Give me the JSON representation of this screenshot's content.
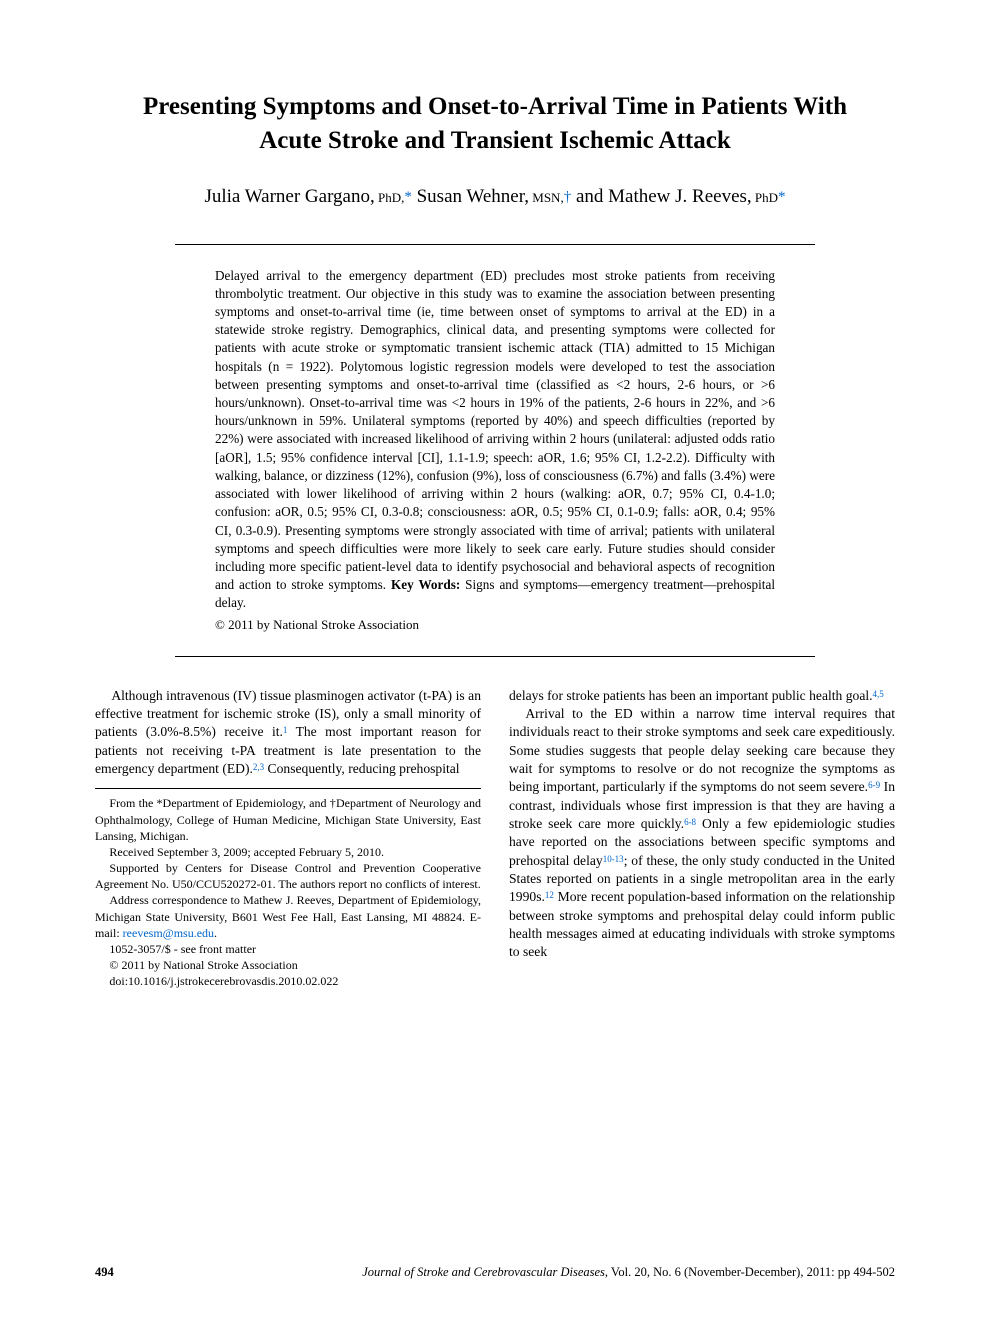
{
  "title": "Presenting Symptoms and Onset-to-Arrival Time in Patients With Acute Stroke and Transient Ischemic Attack",
  "authors": {
    "a1_name": "Julia Warner Gargano,",
    "a1_deg": " PhD,",
    "a1_affil": "*",
    "a2_name": " Susan Wehner,",
    "a2_deg": " MSN,",
    "a2_affil": "†",
    "a3_pre": " and ",
    "a3_name": "Mathew J. Reeves,",
    "a3_deg": " PhD",
    "a3_affil": "*"
  },
  "abstract": "Delayed arrival to the emergency department (ED) precludes most stroke patients from receiving thrombolytic treatment. Our objective in this study was to examine the association between presenting symptoms and onset-to-arrival time (ie, time between onset of symptoms to arrival at the ED) in a statewide stroke registry. Demographics, clinical data, and presenting symptoms were collected for patients with acute stroke or symptomatic transient ischemic attack (TIA) admitted to 15 Michigan hospitals (n = 1922). Polytomous logistic regression models were developed to test the association between presenting symptoms and onset-to-arrival time (classified as <2 hours, 2-6 hours, or >6 hours/unknown). Onset-to-arrival time was <2 hours in 19% of the patients, 2-6 hours in 22%, and >6 hours/unknown in 59%. Unilateral symptoms (reported by 40%) and speech difficulties (reported by 22%) were associated with increased likelihood of arriving within 2 hours (unilateral: adjusted odds ratio [aOR], 1.5; 95% confidence interval [CI], 1.1-1.9; speech: aOR, 1.6; 95% CI, 1.2-2.2). Difficulty with walking, balance, or dizziness (12%), confusion (9%), loss of consciousness (6.7%) and falls (3.4%) were associated with lower likelihood of arriving within 2 hours (walking: aOR, 0.7; 95% CI, 0.4-1.0; confusion: aOR, 0.5; 95% CI, 0.3-0.8; consciousness: aOR, 0.5; 95% CI, 0.1-0.9; falls: aOR, 0.4; 95% CI, 0.3-0.9). Presenting symptoms were strongly associated with time of arrival; patients with unilateral symptoms and speech difficulties were more likely to seek care early. Future studies should consider including more specific patient-level data to identify psychosocial and behavioral aspects of recognition and action to stroke symptoms.",
  "keywords_label": " Key Words: ",
  "keywords": "Signs and symptoms—emergency treatment—prehospital delay.",
  "copyright": "© 2011 by National Stroke Association",
  "body": {
    "left_p1_a": "Although intravenous (IV) tissue plasminogen activator (t-PA) is an effective treatment for ischemic stroke (IS), only a small minority of patients (3.0%-8.5%) receive it.",
    "left_ref1": "1",
    "left_p1_b": " The most important reason for patients not receiving t-PA treatment is late presentation to the emergency department (ED).",
    "left_ref2": "2,3",
    "left_p1_c": " Consequently, reducing prehospital",
    "right_p1_a": "delays for stroke patients has been an important public health goal.",
    "right_ref1": "4,5",
    "right_p2_a": "Arrival to the ED within a narrow time interval requires that individuals react to their stroke symptoms and seek care expeditiously. Some studies suggests that people delay seeking care because they wait for symptoms to resolve or do not recognize the symptoms as being important, particularly if the symptoms do not seem severe.",
    "right_ref2": "6-9",
    "right_p2_b": " In contrast, individuals whose first impression is that they are having a stroke seek care more quickly.",
    "right_ref3": "6-8",
    "right_p2_c": " Only a few epidemiologic studies have reported on the associations between specific symptoms and prehospital delay",
    "right_ref4": "10-13",
    "right_p2_d": "; of these, the only study conducted in the United States reported on patients in a single metropolitan area in the early 1990s.",
    "right_ref5": "12",
    "right_p2_e": " More recent population-based information on the relationship between stroke symptoms and prehospital delay could inform public health messages aimed at educating individuals with stroke symptoms to seek"
  },
  "footnotes": {
    "f1": "From the *Department of Epidemiology, and †Department of Neurology and Ophthalmology, College of Human Medicine, Michigan State University, East Lansing, Michigan.",
    "f2": "Received September 3, 2009; accepted February 5, 2010.",
    "f3": "Supported by Centers for Disease Control and Prevention Cooperative Agreement No. U50/CCU520272-01. The authors report no conflicts of interest.",
    "f4_a": "Address correspondence to Mathew J. Reeves, Department of Epidemiology, Michigan State University, B601 West Fee Hall, East Lansing, MI 48824. E-mail: ",
    "f4_email": "reevesm@msu.edu",
    "f4_b": ".",
    "f5": "1052-3057/$ - see front matter",
    "f6": "© 2011 by National Stroke Association",
    "f7": "doi:10.1016/j.jstrokecerebrovasdis.2010.02.022"
  },
  "footer": {
    "page": "494",
    "journal": "Journal of Stroke and Cerebrovascular Diseases,",
    "issue": " Vol. 20, No. 6 (November-December), 2011: pp 494-502"
  },
  "colors": {
    "link": "#0066cc",
    "text": "#000000",
    "bg": "#ffffff"
  }
}
